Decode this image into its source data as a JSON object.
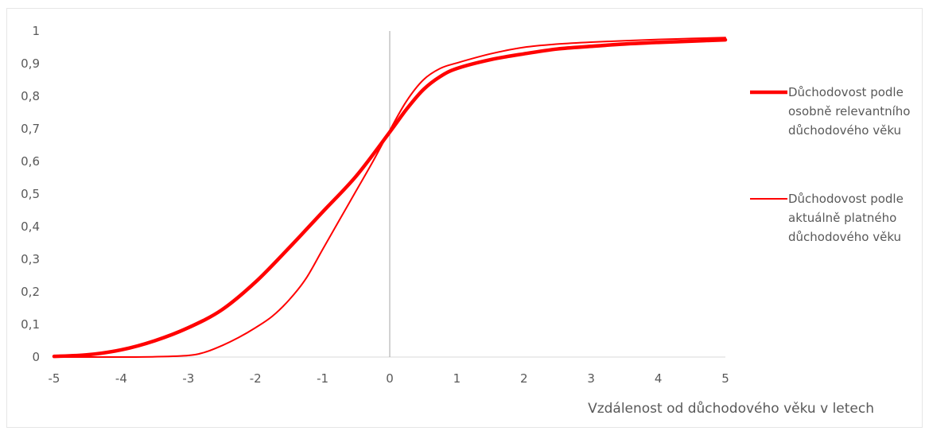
{
  "chart_data": {
    "type": "line",
    "title": "",
    "xlabel": "Vzdálenost od důchodového věku v letech",
    "ylabel": "",
    "xlim": [
      -5,
      5
    ],
    "ylim": [
      0,
      1
    ],
    "x_ticks": [
      -5,
      -4,
      -3,
      -2,
      -1,
      0,
      1,
      2,
      3,
      4,
      5
    ],
    "x_tick_labels": [
      "-5",
      "-4",
      "-3",
      "-2",
      "-1",
      "0",
      "1",
      "2",
      "3",
      "4",
      "5"
    ],
    "y_ticks": [
      0,
      0.1,
      0.2,
      0.3,
      0.4,
      0.5,
      0.6,
      0.7,
      0.8,
      0.9,
      1
    ],
    "y_tick_labels": [
      "0",
      "0,1",
      "0,2",
      "0,3",
      "0,4",
      "0,5",
      "0,6",
      "0,7",
      "0,8",
      "0,9",
      "1"
    ],
    "grid": false,
    "legend_position": "right",
    "series": [
      {
        "name": "Důchodovost podle osobně relevantního důchodového věku",
        "legend_lines": [
          "Důchodovost podle",
          "osobně relevantního",
          "důchodového věku"
        ],
        "color": "#ff0000",
        "style": "thick",
        "x": [
          -5,
          -4.5,
          -4,
          -3.5,
          -3,
          -2.5,
          -2,
          -1.5,
          -1,
          -0.5,
          0,
          0.25,
          0.5,
          0.75,
          1,
          1.5,
          2,
          2.5,
          3,
          3.5,
          4,
          4.5,
          5
        ],
        "y": [
          0.002,
          0.007,
          0.022,
          0.05,
          0.09,
          0.145,
          0.23,
          0.335,
          0.445,
          0.555,
          0.69,
          0.76,
          0.82,
          0.86,
          0.885,
          0.912,
          0.93,
          0.945,
          0.953,
          0.96,
          0.965,
          0.969,
          0.973
        ]
      },
      {
        "name": "Důchodovost podle aktuálně platného důchodového věku",
        "legend_lines": [
          "Důchodovost podle",
          "aktuálně platného",
          "důchodového věku"
        ],
        "color": "#ff0000",
        "style": "thin",
        "x": [
          -5,
          -4.5,
          -4,
          -3.5,
          -3,
          -2.75,
          -2.5,
          -2.25,
          -2,
          -1.75,
          -1.5,
          -1.25,
          -1,
          -0.75,
          -0.5,
          -0.25,
          0,
          0.25,
          0.5,
          0.75,
          1,
          1.5,
          2,
          2.5,
          3,
          3.5,
          4,
          4.5,
          5
        ],
        "y": [
          0,
          0,
          0,
          0.001,
          0.005,
          0.015,
          0.035,
          0.06,
          0.09,
          0.125,
          0.175,
          0.24,
          0.33,
          0.42,
          0.51,
          0.6,
          0.695,
          0.785,
          0.85,
          0.885,
          0.902,
          0.93,
          0.95,
          0.96,
          0.966,
          0.97,
          0.974,
          0.977,
          0.98
        ]
      }
    ]
  }
}
